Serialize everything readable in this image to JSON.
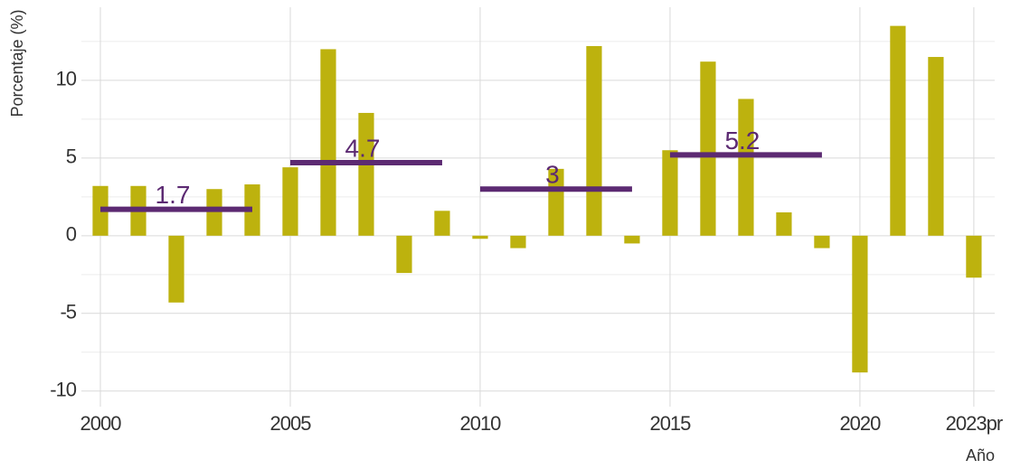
{
  "chart_data": {
    "type": "bar",
    "x_label": "Año",
    "y_label": "Porcentaje (%)",
    "x": [
      2000,
      2001,
      2002,
      2003,
      2004,
      2005,
      2006,
      2007,
      2008,
      2009,
      2010,
      2011,
      2012,
      2013,
      2014,
      2015,
      2016,
      2017,
      2018,
      2019,
      2020,
      2021,
      2022,
      2023
    ],
    "values": [
      3.2,
      3.2,
      -4.3,
      3.0,
      3.3,
      4.4,
      12.0,
      7.9,
      -2.4,
      1.6,
      -0.2,
      -0.8,
      4.3,
      12.2,
      -0.5,
      5.5,
      11.2,
      8.8,
      1.5,
      -0.8,
      -8.8,
      13.5,
      11.5,
      -2.7
    ],
    "color": "#bdb20e",
    "averages": [
      {
        "start": 2000,
        "end": 2004,
        "value": 1.7
      },
      {
        "start": 2005,
        "end": 2009,
        "value": 4.7
      },
      {
        "start": 2010,
        "end": 2014,
        "value": 3
      },
      {
        "start": 2015,
        "end": 2019,
        "value": 5.2
      }
    ],
    "average_color": "#5c2a72",
    "xlim": [
      1999.5,
      2023.55
    ],
    "xticks": [
      2000,
      2005,
      2010,
      2015,
      2020,
      {
        "value": 2023,
        "label": "2023pr"
      }
    ],
    "ylim": [
      -11,
      14.7
    ],
    "yticks": [
      -10,
      -5,
      0,
      5,
      10
    ],
    "grid": true
  }
}
